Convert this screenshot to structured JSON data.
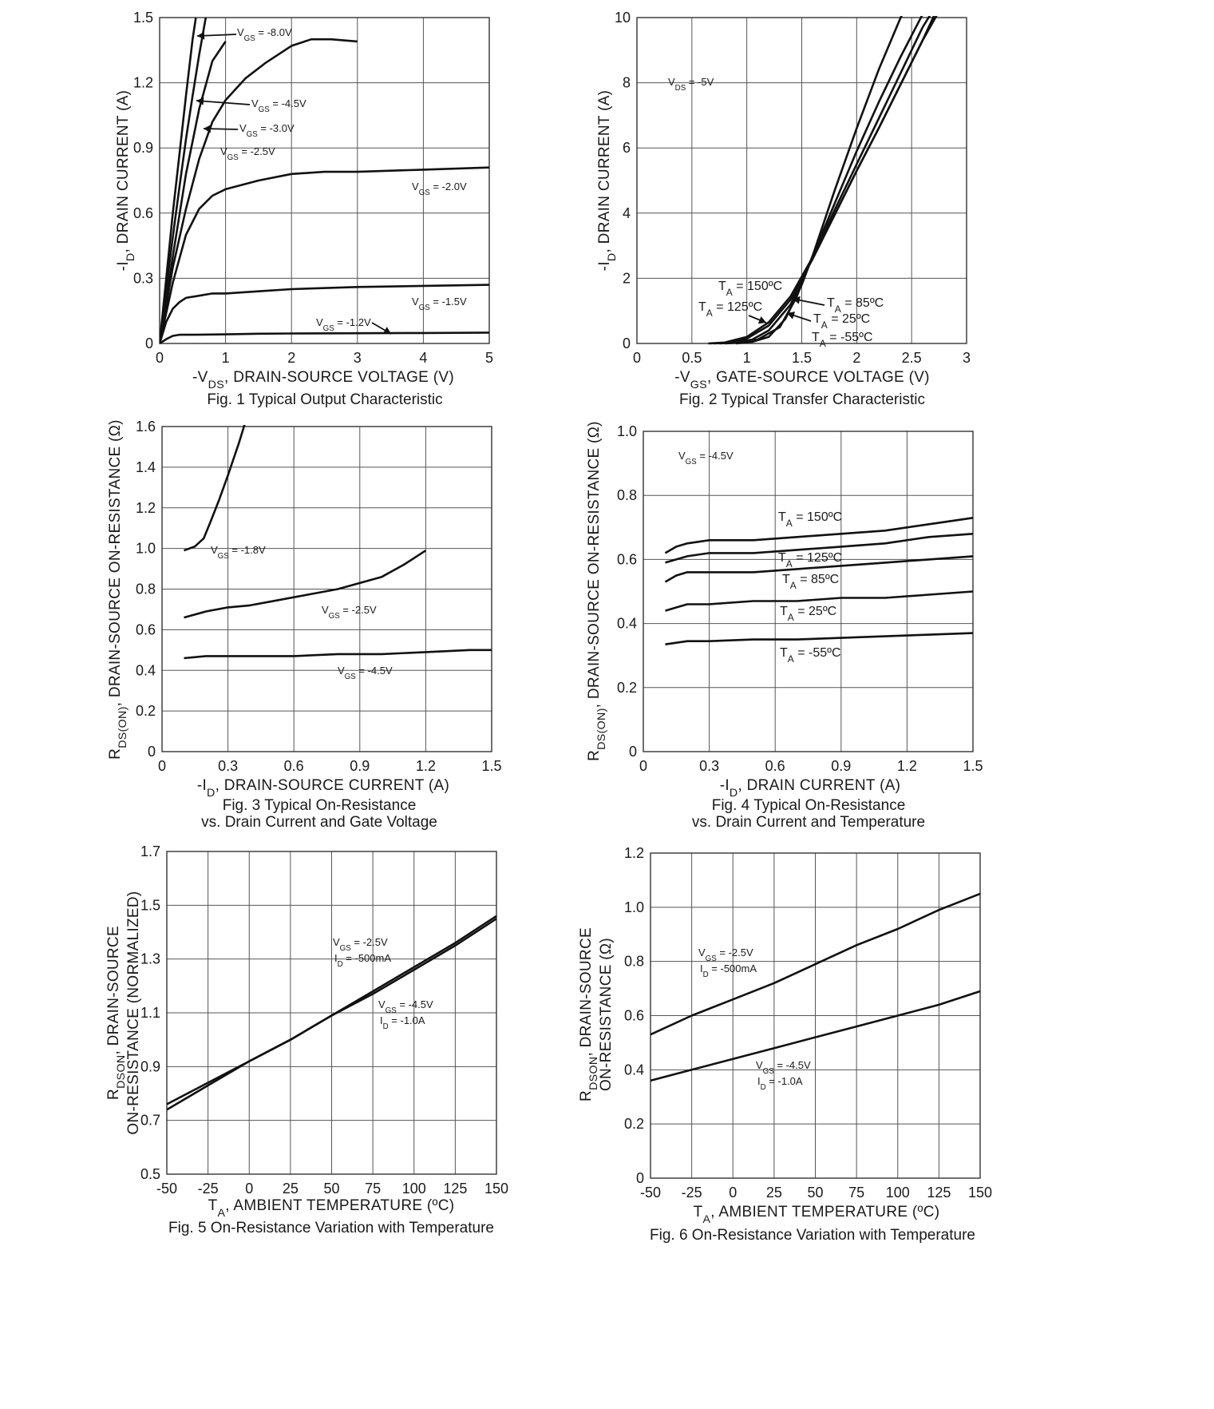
{
  "chart_data": [
    {
      "id": "fig1",
      "type": "line",
      "caption": "Fig. 1 Typical Output Characteristic",
      "xlabel": "-V_DS, DRAIN-SOURCE VOLTAGE (V)",
      "ylabel": "-I_D, DRAIN CURRENT (A)",
      "xlim": [
        0,
        5
      ],
      "ylim": [
        0,
        1.5
      ],
      "xticks": [
        "0",
        "1",
        "2",
        "3",
        "4",
        "5"
      ],
      "yticks": [
        "0",
        "0.3",
        "0.6",
        "0.9",
        "1.2",
        "1.5"
      ],
      "grid": true,
      "series": [
        {
          "name": "V_GS = -8.0V",
          "x": [
            0,
            0.1,
            0.2,
            0.3,
            0.4,
            0.5,
            0.55
          ],
          "y": [
            0,
            0.3,
            0.6,
            0.87,
            1.14,
            1.4,
            1.5
          ]
        },
        {
          "name": "V_GS = -4.5V",
          "x": [
            0,
            0.1,
            0.2,
            0.3,
            0.4,
            0.5,
            0.6,
            0.7
          ],
          "y": [
            0,
            0.25,
            0.49,
            0.72,
            0.94,
            1.14,
            1.33,
            1.5
          ]
        },
        {
          "name": "V_GS = -3.0V",
          "x": [
            0,
            0.2,
            0.4,
            0.6,
            0.8,
            1.0
          ],
          "y": [
            0,
            0.4,
            0.78,
            1.08,
            1.3,
            1.39
          ]
        },
        {
          "name": "V_GS = -2.5V",
          "x": [
            0,
            0.2,
            0.4,
            0.6,
            0.8,
            1.0,
            1.3,
            1.6,
            2.0,
            2.3,
            2.6,
            3.0
          ],
          "y": [
            0,
            0.35,
            0.62,
            0.85,
            1.02,
            1.12,
            1.22,
            1.29,
            1.37,
            1.4,
            1.4,
            1.39
          ]
        },
        {
          "name": "V_GS = -2.0V",
          "x": [
            0,
            0.2,
            0.4,
            0.6,
            0.8,
            1.0,
            1.5,
            2.0,
            2.5,
            3.0,
            4.0,
            5.0
          ],
          "y": [
            0,
            0.28,
            0.5,
            0.62,
            0.68,
            0.71,
            0.75,
            0.78,
            0.79,
            0.79,
            0.8,
            0.81
          ]
        },
        {
          "name": "V_GS = -1.5V",
          "x": [
            0,
            0.1,
            0.2,
            0.3,
            0.4,
            0.6,
            0.8,
            1.0,
            1.5,
            2.0,
            3.0,
            4.0,
            5.0
          ],
          "y": [
            0,
            0.1,
            0.16,
            0.19,
            0.21,
            0.22,
            0.23,
            0.23,
            0.24,
            0.25,
            0.26,
            0.265,
            0.27
          ]
        },
        {
          "name": "V_GS = -1.2V",
          "x": [
            0,
            0.1,
            0.2,
            0.3,
            0.5,
            1.0,
            1.5,
            2.0,
            3.0,
            4.0,
            5.0
          ],
          "y": [
            0,
            0.02,
            0.035,
            0.04,
            0.04,
            0.042,
            0.045,
            0.046,
            0.047,
            0.048,
            0.05
          ]
        }
      ],
      "labels": [
        {
          "text": "V_GS = -8.0V"
        },
        {
          "text": "V_GS = -4.5V"
        },
        {
          "text": "V_GS = -3.0V"
        },
        {
          "text": "V_GS = -2.5V"
        },
        {
          "text": "V_GS = -2.0V"
        },
        {
          "text": "V_GS = -1.5V"
        },
        {
          "text": "V_GS = -1.2V"
        }
      ]
    },
    {
      "id": "fig2",
      "type": "line",
      "caption": "Fig. 2  Typical Transfer Characteristic",
      "xlabel": "-V_GS, GATE-SOURCE VOLTAGE (V)",
      "ylabel": "-I_D, DRAIN CURRENT (A)",
      "xlim": [
        0,
        3
      ],
      "ylim": [
        0,
        10
      ],
      "xticks": [
        "0",
        "0.5",
        "1",
        "1.5",
        "2",
        "2.5",
        "3"
      ],
      "yticks": [
        "0",
        "2",
        "4",
        "6",
        "8",
        "10"
      ],
      "grid": true,
      "series": [
        {
          "name": "T_A = 150ºC",
          "x": [
            0.65,
            0.8,
            1.0,
            1.2,
            1.4,
            1.6,
            1.8,
            2.0,
            2.2,
            2.4,
            2.6,
            2.75
          ],
          "y": [
            0,
            0.03,
            0.2,
            0.65,
            1.45,
            2.65,
            3.95,
            5.3,
            6.6,
            7.95,
            9.3,
            10.4
          ]
        },
        {
          "name": "T_A = 125ºC",
          "x": [
            0.7,
            0.85,
            1.0,
            1.2,
            1.4,
            1.6,
            1.8,
            2.0,
            2.2,
            2.4,
            2.6,
            2.8
          ],
          "y": [
            0,
            0.03,
            0.15,
            0.55,
            1.35,
            2.6,
            3.95,
            5.3,
            6.6,
            7.95,
            9.3,
            10.5
          ]
        },
        {
          "name": "T_A = 85ºC",
          "x": [
            0.75,
            0.9,
            1.05,
            1.2,
            1.4,
            1.6,
            1.8,
            2.0,
            2.2,
            2.4,
            2.6,
            2.8
          ],
          "y": [
            0,
            0.03,
            0.12,
            0.4,
            1.2,
            2.65,
            4.1,
            5.5,
            6.9,
            8.3,
            9.7,
            10.8
          ]
        },
        {
          "name": "T_A = 25ºC",
          "x": [
            0.8,
            0.95,
            1.1,
            1.3,
            1.45,
            1.6,
            1.8,
            2.0,
            2.2,
            2.4,
            2.6,
            2.7
          ],
          "y": [
            0,
            0.03,
            0.12,
            0.5,
            1.4,
            2.7,
            4.3,
            5.9,
            7.4,
            8.8,
            10.1,
            10.8
          ]
        },
        {
          "name": "T_A = -55ºC",
          "x": [
            0.9,
            1.05,
            1.2,
            1.35,
            1.5,
            1.6,
            1.8,
            2.0,
            2.2,
            2.4,
            2.5
          ],
          "y": [
            0,
            0.05,
            0.2,
            0.75,
            1.8,
            2.7,
            4.7,
            6.6,
            8.4,
            10.0,
            10.6
          ]
        }
      ],
      "labels": [
        {
          "text": "V_DS = -5V"
        },
        {
          "text": "T_A = 150ºC"
        },
        {
          "text": "T_A = 125ºC"
        },
        {
          "text": "T_A = 85ºC"
        },
        {
          "text": "T_A = 25ºC"
        },
        {
          "text": "T_A = -55ºC"
        }
      ]
    },
    {
      "id": "fig3",
      "type": "line",
      "caption": [
        "Fig. 3  Typical On-Resistance",
        "vs. Drain Current and Gate Voltage"
      ],
      "xlabel": "-I_D, DRAIN-SOURCE CURRENT (A)",
      "ylabel": "R_DS(ON), DRAIN-SOURCE ON-RESISTANCE (Ω)",
      "xlim": [
        0,
        1.5
      ],
      "ylim": [
        0,
        1.6
      ],
      "xticks": [
        "0",
        "0.3",
        "0.6",
        "0.9",
        "1.2",
        "1.5"
      ],
      "yticks": [
        "0",
        "0.2",
        "0.4",
        "0.6",
        "0.8",
        "1.0",
        "1.2",
        "1.4",
        "1.6"
      ],
      "grid": true,
      "series": [
        {
          "name": "V_GS = -1.8V",
          "x": [
            0.1,
            0.15,
            0.19,
            0.22,
            0.26,
            0.3,
            0.35,
            0.39,
            0.42
          ],
          "y": [
            0.99,
            1.01,
            1.05,
            1.13,
            1.24,
            1.36,
            1.52,
            1.66,
            1.76
          ]
        },
        {
          "name": "V_GS = -2.5V",
          "x": [
            0.1,
            0.2,
            0.3,
            0.4,
            0.5,
            0.6,
            0.7,
            0.8,
            0.9,
            1.0,
            1.1,
            1.2
          ],
          "y": [
            0.66,
            0.69,
            0.71,
            0.72,
            0.74,
            0.76,
            0.78,
            0.8,
            0.83,
            0.86,
            0.92,
            0.99
          ]
        },
        {
          "name": "V_GS = -4.5V",
          "x": [
            0.1,
            0.2,
            0.4,
            0.6,
            0.8,
            1.0,
            1.2,
            1.4,
            1.5
          ],
          "y": [
            0.46,
            0.47,
            0.47,
            0.47,
            0.48,
            0.48,
            0.49,
            0.5,
            0.5
          ]
        }
      ],
      "labels": [
        {
          "text": "V_GS = -1.8V"
        },
        {
          "text": "V_GS = -2.5V"
        },
        {
          "text": "V_GS = -4.5V"
        }
      ]
    },
    {
      "id": "fig4",
      "type": "line",
      "caption": [
        "Fig. 4 Typical On-Resistance",
        "vs. Drain Current and Temperature"
      ],
      "xlabel": "-I_D, DRAIN CURRENT (A)",
      "ylabel": "R_DS(ON), DRAIN-SOURCE ON-RESISTANCE (Ω)",
      "xlim": [
        0,
        1.5
      ],
      "ylim": [
        0,
        1.0
      ],
      "xticks": [
        "0",
        "0.3",
        "0.6",
        "0.9",
        "1.2",
        "1.5"
      ],
      "yticks": [
        "0",
        "0.2",
        "0.4",
        "0.6",
        "0.8",
        "1.0"
      ],
      "grid": true,
      "series": [
        {
          "name": "T_A = 150ºC",
          "x": [
            0.1,
            0.15,
            0.2,
            0.3,
            0.5,
            0.7,
            0.9,
            1.1,
            1.3,
            1.5
          ],
          "y": [
            0.62,
            0.64,
            0.65,
            0.66,
            0.66,
            0.67,
            0.68,
            0.69,
            0.71,
            0.73
          ]
        },
        {
          "name": "T_A = 125ºC",
          "x": [
            0.1,
            0.15,
            0.2,
            0.3,
            0.5,
            0.7,
            0.9,
            1.1,
            1.3,
            1.5
          ],
          "y": [
            0.59,
            0.6,
            0.61,
            0.62,
            0.62,
            0.63,
            0.64,
            0.65,
            0.67,
            0.68
          ]
        },
        {
          "name": "T_A = 85ºC",
          "x": [
            0.1,
            0.15,
            0.2,
            0.3,
            0.5,
            0.7,
            0.9,
            1.1,
            1.3,
            1.5
          ],
          "y": [
            0.53,
            0.55,
            0.56,
            0.56,
            0.56,
            0.57,
            0.58,
            0.59,
            0.6,
            0.61
          ]
        },
        {
          "name": "T_A = 25ºC",
          "x": [
            0.1,
            0.15,
            0.2,
            0.3,
            0.5,
            0.7,
            0.9,
            1.1,
            1.3,
            1.5
          ],
          "y": [
            0.44,
            0.45,
            0.46,
            0.46,
            0.47,
            0.47,
            0.48,
            0.48,
            0.49,
            0.5
          ]
        },
        {
          "name": "T_A = -55ºC",
          "x": [
            0.1,
            0.15,
            0.2,
            0.3,
            0.5,
            0.7,
            0.9,
            1.1,
            1.3,
            1.5
          ],
          "y": [
            0.335,
            0.34,
            0.345,
            0.345,
            0.35,
            0.35,
            0.355,
            0.36,
            0.365,
            0.37
          ]
        }
      ],
      "labels": [
        {
          "text": "V_GS = -4.5V"
        },
        {
          "text": "T_A = 150ºC"
        },
        {
          "text": "T_A = 125ºC"
        },
        {
          "text": "T_A = 85ºC"
        },
        {
          "text": "T_A = 25ºC"
        },
        {
          "text": "T_A = -55ºC"
        }
      ]
    },
    {
      "id": "fig5",
      "type": "line",
      "caption": "Fig. 5 On-Resistance Variation with Temperature",
      "xlabel": "T_A, AMBIENT TEMPERATURE (ºC)",
      "ylabel": [
        "R_DSON, DRAIN-SOURCE",
        "ON-RESISTANCE (NORMALIZED)"
      ],
      "xlim": [
        -50,
        150
      ],
      "ylim": [
        0.5,
        1.7
      ],
      "xticks": [
        "-50",
        "-25",
        "0",
        "25",
        "50",
        "75",
        "100",
        "125",
        "150"
      ],
      "yticks": [
        "0.5",
        "0.7",
        "0.9",
        "1.1",
        "1.3",
        "1.5",
        "1.7"
      ],
      "grid": true,
      "series": [
        {
          "name": "V_GS = -2.5V, I_D = -500mA",
          "x": [
            -50,
            -25,
            0,
            25,
            50,
            75,
            100,
            125,
            150
          ],
          "y": [
            0.76,
            0.84,
            0.92,
            1.0,
            1.09,
            1.17,
            1.26,
            1.35,
            1.45
          ]
        },
        {
          "name": "V_GS = -4.5V, I_D = -1.0A",
          "x": [
            -50,
            -25,
            0,
            25,
            50,
            75,
            100,
            125,
            150
          ],
          "y": [
            0.74,
            0.83,
            0.92,
            1.0,
            1.09,
            1.18,
            1.27,
            1.36,
            1.46
          ]
        }
      ],
      "labels": [
        {
          "text": "V_GS = -2.5V",
          "text2": "I_D = -500mA"
        },
        {
          "text": "V_GS = -4.5V",
          "text2": "I_D = -1.0A"
        }
      ]
    },
    {
      "id": "fig6",
      "type": "line",
      "caption": "Fig. 6 On-Resistance Variation with Temperature",
      "xlabel": "T_A, AMBIENT TEMPERATURE (ºC)",
      "ylabel": [
        "R_DSON, DRAIN-SOURCE",
        "ON-RESISTANCE (Ω)"
      ],
      "xlim": [
        -50,
        150
      ],
      "ylim": [
        0,
        1.2
      ],
      "xticks": [
        "-50",
        "-25",
        "0",
        "25",
        "50",
        "75",
        "100",
        "125",
        "150"
      ],
      "yticks": [
        "0",
        "0.2",
        "0.4",
        "0.6",
        "0.8",
        "1.0",
        "1.2"
      ],
      "grid": true,
      "series": [
        {
          "name": "V_GS = -2.5V, I_D = -500mA",
          "x": [
            -50,
            -25,
            0,
            25,
            50,
            75,
            100,
            125,
            150
          ],
          "y": [
            0.53,
            0.6,
            0.66,
            0.72,
            0.79,
            0.86,
            0.92,
            0.99,
            1.05
          ]
        },
        {
          "name": "V_GS = -4.5V, I_D = -1.0A",
          "x": [
            -50,
            -25,
            0,
            25,
            50,
            75,
            100,
            125,
            150
          ],
          "y": [
            0.36,
            0.4,
            0.44,
            0.48,
            0.52,
            0.56,
            0.6,
            0.64,
            0.69
          ]
        }
      ],
      "labels": [
        {
          "text": "V_GS = -2.5V",
          "text2": "I_D = -500mA"
        },
        {
          "text": "V_GS = -4.5V",
          "text2": "I_D = -1.0A"
        }
      ]
    }
  ]
}
